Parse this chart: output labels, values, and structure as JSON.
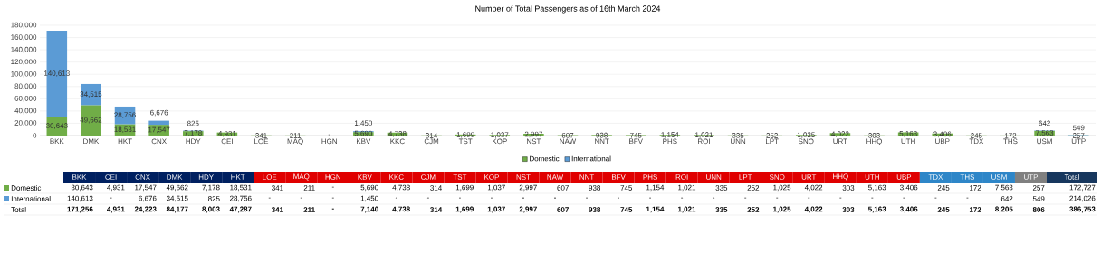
{
  "chart_data": [
    {
      "type": "bar",
      "title": "Number of Total Passengers as of 16th March 2024",
      "stacked": true,
      "grid": "y",
      "legend": "bottom",
      "categories": [
        "BKK",
        "DMK",
        "HKT",
        "CNX",
        "HDY",
        "CEI",
        "LOE",
        "MAQ",
        "HGN",
        "KBV",
        "KKC",
        "CJM",
        "TST",
        "KOP",
        "NST",
        "NAW",
        "NNT",
        "BFV",
        "PHS",
        "ROI",
        "UNN",
        "LPT",
        "SNO",
        "URT",
        "HHQ",
        "UTH",
        "UBP",
        "TDX",
        "THS",
        "USM",
        "UTP"
      ],
      "ylim": [
        0,
        180000
      ],
      "yticks": [
        0,
        {
          "value": 20000,
          "label": "20,000"
        },
        {
          "value": 40000,
          "label": "40,000"
        },
        {
          "value": 60000,
          "label": "60,000"
        },
        {
          "value": 80000,
          "label": "80,000"
        },
        {
          "value": 100000,
          "label": "100,000"
        },
        {
          "value": 120000,
          "label": "120,000"
        },
        {
          "value": 140000,
          "label": "140,000"
        },
        {
          "value": 160000,
          "label": "160,000"
        },
        {
          "value": 180000,
          "label": "180,000"
        }
      ],
      "series": [
        {
          "name": "Domestic",
          "color": "#70ad47",
          "values": [
            30643,
            49662,
            18531,
            17547,
            7178,
            4931,
            341,
            211,
            0,
            5690,
            4738,
            314,
            1699,
            1037,
            2997,
            607,
            938,
            745,
            1154,
            1021,
            335,
            252,
            1025,
            4022,
            303,
            5163,
            3406,
            245,
            172,
            7563,
            257
          ],
          "value_labels": [
            "30,643",
            "49,662",
            "18,531",
            "17,547",
            "7,178",
            "4,931",
            "341",
            "211",
            "-",
            "5,690",
            "4,738",
            "314",
            "1,699",
            "1,037",
            "2,997",
            "607",
            "938",
            "745",
            "1,154",
            "1,021",
            "335",
            "252",
            "1,025",
            "4,022",
            "303",
            "5,163",
            "3,406",
            "245",
            "172",
            "7,563",
            "257"
          ]
        },
        {
          "name": "International",
          "color": "#5b9bd5",
          "values": [
            140613,
            34515,
            28756,
            6676,
            825,
            null,
            null,
            null,
            null,
            1450,
            null,
            null,
            null,
            null,
            null,
            null,
            null,
            null,
            null,
            null,
            null,
            null,
            null,
            null,
            null,
            null,
            null,
            null,
            null,
            642,
            549
          ],
          "value_labels": [
            "140,613",
            "34,515",
            "28,756",
            "6,676",
            "825",
            null,
            null,
            null,
            null,
            "1,450",
            null,
            null,
            null,
            null,
            null,
            null,
            null,
            null,
            null,
            null,
            null,
            null,
            null,
            null,
            null,
            null,
            null,
            null,
            null,
            "642",
            "549"
          ]
        }
      ]
    },
    {
      "type": "other",
      "categories": [
        "BKK",
        "CEI",
        "CNX",
        "DMK",
        "HDY",
        "HKT",
        "LOE",
        "MAQ",
        "HGN",
        "KBV",
        "KKC",
        "CJM",
        "TST",
        "KOP",
        "NST",
        "NAW",
        "NNT",
        "BFV",
        "PHS",
        "ROI",
        "UNN",
        "LPT",
        "SNO",
        "URT",
        "HHQ",
        "UTH",
        "UBP",
        "TDX",
        "THS",
        "USM",
        "UTP",
        "Total"
      ],
      "colors": [
        "#002060",
        "#002060",
        "#002060",
        "#002060",
        "#002060",
        "#002060",
        "#e00000",
        "#e00000",
        "#e00000",
        "#e00000",
        "#e00000",
        "#e00000",
        "#e00000",
        "#e00000",
        "#e00000",
        "#e00000",
        "#e00000",
        "#e00000",
        "#e00000",
        "#e00000",
        "#e00000",
        "#e00000",
        "#e00000",
        "#e00000",
        "#e00000",
        "#e00000",
        "#e00000",
        "#2e86c8",
        "#2e86c8",
        "#2e86c8",
        "#808080",
        "#17375e"
      ],
      "series": [
        {
          "name": "Domestic",
          "color": "#70ad47",
          "values": [
            30643,
            4931,
            17547,
            49662,
            7178,
            18531,
            341,
            211,
            null,
            5690,
            4738,
            314,
            1699,
            1037,
            2997,
            607,
            938,
            745,
            1154,
            1021,
            335,
            252,
            1025,
            4022,
            303,
            5163,
            3406,
            245,
            172,
            7563,
            257,
            172727
          ],
          "value_labels": [
            "30,643",
            "4,931",
            "17,547",
            "49,662",
            "7,178",
            "18,531",
            "341",
            "211",
            "-",
            "5,690",
            "4,738",
            "314",
            "1,699",
            "1,037",
            "2,997",
            "607",
            "938",
            "745",
            "1,154",
            "1,021",
            "335",
            "252",
            "1,025",
            "4,022",
            "303",
            "5,163",
            "3,406",
            "245",
            "172",
            "7,563",
            "257",
            "172,727"
          ]
        },
        {
          "name": "International",
          "color": "#5b9bd5",
          "values": [
            140613,
            null,
            6676,
            34515,
            825,
            28756,
            null,
            null,
            null,
            1450,
            null,
            null,
            null,
            null,
            null,
            null,
            null,
            null,
            null,
            null,
            null,
            null,
            null,
            null,
            null,
            null,
            null,
            null,
            null,
            642,
            549,
            214026
          ],
          "value_labels": [
            "140,613",
            "-",
            "6,676",
            "34,515",
            "825",
            "28,756",
            "-",
            "-",
            "-",
            "1,450",
            "-",
            "-",
            "-",
            "-",
            "-",
            "-",
            "-",
            "-",
            "-",
            "-",
            "-",
            "-",
            "-",
            "-",
            "-",
            "-",
            "-",
            "-",
            "-",
            "642",
            "549",
            "214,026"
          ]
        },
        {
          "name": "Total",
          "values": [
            171256,
            4931,
            24223,
            84177,
            8003,
            47287,
            341,
            211,
            null,
            7140,
            4738,
            314,
            1699,
            1037,
            2997,
            607,
            938,
            745,
            1154,
            1021,
            335,
            252,
            1025,
            4022,
            303,
            5163,
            3406,
            245,
            172,
            8205,
            806,
            386753
          ],
          "value_labels": [
            "171,256",
            "4,931",
            "24,223",
            "84,177",
            "8,003",
            "47,287",
            "341",
            "211",
            "-",
            "7,140",
            "4,738",
            "314",
            "1,699",
            "1,037",
            "2,997",
            "607",
            "938",
            "745",
            "1,154",
            "1,021",
            "335",
            "252",
            "1,025",
            "4,022",
            "303",
            "5,163",
            "3,406",
            "245",
            "172",
            "8,205",
            "806",
            "386,753"
          ]
        }
      ]
    }
  ]
}
